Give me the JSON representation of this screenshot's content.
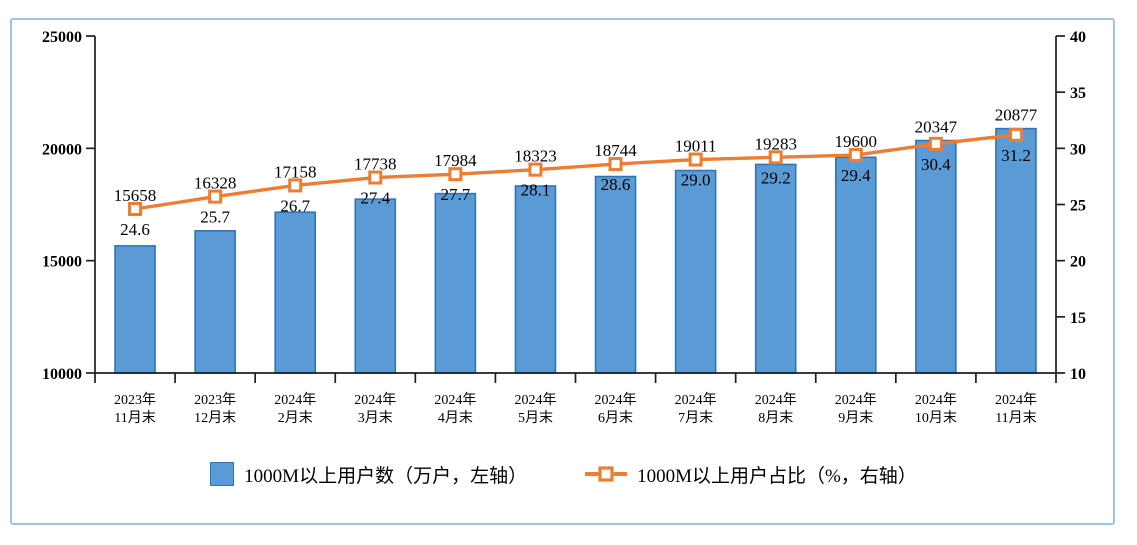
{
  "chart_data": {
    "type": "bar",
    "subtype": "bar-line-combo",
    "title": "",
    "categories": [
      [
        "2023年",
        "11月末"
      ],
      [
        "2023年",
        "12月末"
      ],
      [
        "2024年",
        "2月末"
      ],
      [
        "2024年",
        "3月末"
      ],
      [
        "2024年",
        "4月末"
      ],
      [
        "2024年",
        "5月末"
      ],
      [
        "2024年",
        "6月末"
      ],
      [
        "2024年",
        "7月末"
      ],
      [
        "2024年",
        "8月末"
      ],
      [
        "2024年",
        "9月末"
      ],
      [
        "2024年",
        "10月末"
      ],
      [
        "2024年",
        "11月末"
      ]
    ],
    "series": [
      {
        "name": "1000M以上用户数（万户，左轴）",
        "type": "bar",
        "axis": "left",
        "values": [
          15658,
          16328,
          17158,
          17738,
          17984,
          18323,
          18744,
          19011,
          19283,
          19600,
          20347,
          20877
        ],
        "labels": [
          "15658",
          "16328",
          "17158",
          "17738",
          "17984",
          "18323",
          "18744",
          "19011",
          "19283",
          "19600",
          "20347",
          "20877"
        ]
      },
      {
        "name": "1000M以上用户占比（%，右轴）",
        "type": "line",
        "axis": "right",
        "values": [
          24.6,
          25.7,
          26.7,
          27.4,
          27.7,
          28.1,
          28.6,
          29.0,
          29.2,
          29.4,
          30.4,
          31.2
        ],
        "labels": [
          "24.6",
          "25.7",
          "26.7",
          "27.4",
          "27.7",
          "28.1",
          "28.6",
          "29.0",
          "29.2",
          "29.4",
          "30.4",
          "31.2"
        ]
      }
    ],
    "left_axis": {
      "min": 10000,
      "max": 25000,
      "ticks": [
        10000,
        15000,
        20000,
        25000
      ],
      "tick_labels": [
        "10000",
        "15000",
        "20000",
        "25000"
      ]
    },
    "right_axis": {
      "min": 10,
      "max": 40,
      "ticks": [
        10,
        15,
        20,
        25,
        30,
        35,
        40
      ],
      "tick_labels": [
        "10",
        "15",
        "20",
        "25",
        "30",
        "35",
        "40"
      ]
    },
    "grid": false,
    "legend_position": "bottom"
  },
  "colors": {
    "bar_fill": "#5B9BD5",
    "bar_border": "#2E75B6",
    "line": "#ED7D31",
    "marker_fill": "#FFFFFF",
    "axis": "#1F1F1F",
    "text": "#000000",
    "frame_border": "#9DC3E6"
  }
}
